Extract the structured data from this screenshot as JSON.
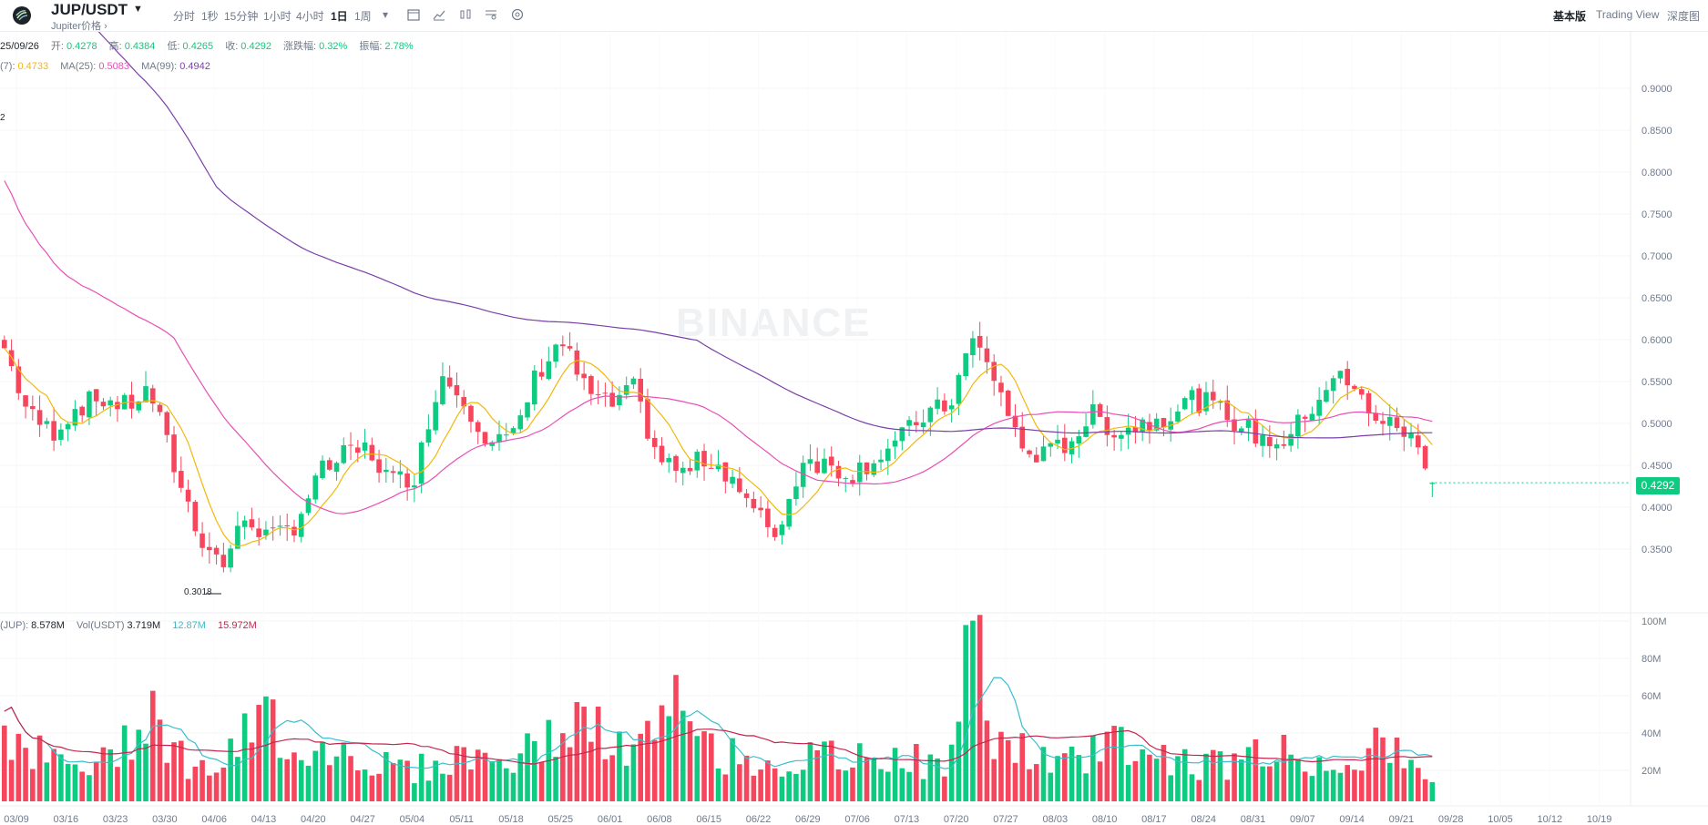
{
  "header": {
    "pair": "JUP/USDT",
    "subtitle": "Jupiter价格",
    "timeframes": [
      "分时",
      "1秒",
      "15分钟",
      "1小时",
      "4小时",
      "1日",
      "1周"
    ],
    "active_timeframe": "1日",
    "tool_icons": [
      "calendar-icon",
      "line-chart-icon",
      "indicator-icon",
      "settings-list-icon",
      "gear-icon"
    ],
    "right_tabs": [
      "基本版",
      "Trading View",
      "深度图"
    ],
    "active_right_tab": "基本版"
  },
  "ohlc": {
    "date": "25/09/26",
    "open_label": "开:",
    "open": "0.4278",
    "high_label": "高:",
    "high": "0.4384",
    "low_label": "低:",
    "low": "0.4265",
    "close_label": "收:",
    "close": "0.4292",
    "change_label": "涨跌幅:",
    "change": "0.32%",
    "amp_label": "振幅:",
    "amp": "2.78%"
  },
  "ma": {
    "ma7_label": "(7):",
    "ma7": "0.4733",
    "ma25_label": "MA(25):",
    "ma25": "0.5083",
    "ma99_label": "MA(99):",
    "ma99": "0.4942"
  },
  "volume": {
    "jup_label": "(JUP):",
    "jup": "8.578M",
    "usdt_label": "Vol(USDT)",
    "usdt": "3.719M",
    "ma1": "12.87M",
    "ma2": "15.972M"
  },
  "last_price": "0.4292",
  "min_marker": "0.3018",
  "max_marker": "2",
  "watermark": "BINANCE",
  "colors": {
    "up": "#0ecb81",
    "down": "#f6465d",
    "ma7": "#f0b90b",
    "ma25": "#e84fb5",
    "ma99": "#7b3fa8",
    "vol_ma1": "#3bbecb",
    "vol_ma2": "#c4264e"
  },
  "chart_data": {
    "type": "candlestick",
    "price_axis": [
      "0.9000",
      "0.8500",
      "0.8000",
      "0.7500",
      "0.7000",
      "0.6500",
      "0.6000",
      "0.5500",
      "0.5000",
      "0.4500",
      "0.4000",
      "0.3500"
    ],
    "volume_axis": [
      "100M",
      "80M",
      "60M",
      "40M",
      "20M"
    ],
    "x_ticks": [
      "03/09",
      "03/16",
      "03/23",
      "03/30",
      "04/06",
      "04/13",
      "04/20",
      "04/27",
      "05/04",
      "05/11",
      "05/18",
      "05/25",
      "06/01",
      "06/08",
      "06/15",
      "06/22",
      "06/29",
      "07/06",
      "07/13",
      "07/20",
      "07/27",
      "08/03",
      "08/10",
      "08/17",
      "08/24",
      "08/31",
      "09/07",
      "09/14",
      "09/21",
      "09/28",
      "10/05",
      "10/12",
      "10/19"
    ],
    "close_anchors": [
      0.59,
      0.51,
      0.49,
      0.52,
      0.53,
      0.52,
      0.54,
      0.45,
      0.37,
      0.33,
      0.39,
      0.36,
      0.38,
      0.44,
      0.46,
      0.47,
      0.43,
      0.44,
      0.56,
      0.53,
      0.48,
      0.48,
      0.56,
      0.6,
      0.54,
      0.52,
      0.54,
      0.46,
      0.44,
      0.46,
      0.44,
      0.39,
      0.37,
      0.46,
      0.45,
      0.44,
      0.46,
      0.48,
      0.51,
      0.52,
      0.6,
      0.55,
      0.47,
      0.46,
      0.48,
      0.51,
      0.49,
      0.5,
      0.51,
      0.53,
      0.52,
      0.5,
      0.48,
      0.48,
      0.52,
      0.56,
      0.53,
      0.5,
      0.49,
      0.43
    ],
    "volume_anchors": [
      44,
      30,
      22,
      18,
      20,
      35,
      60,
      28,
      18,
      20,
      35,
      48,
      30,
      28,
      30,
      22,
      20,
      18,
      20,
      26,
      24,
      22,
      30,
      40,
      45,
      30,
      28,
      38,
      55,
      30,
      25,
      24,
      20,
      22,
      25,
      22,
      24,
      28,
      20,
      18,
      95,
      35,
      28,
      22,
      20,
      30,
      35,
      28,
      24,
      22,
      20,
      22,
      30,
      26,
      20,
      22,
      28,
      30,
      20,
      16
    ]
  }
}
